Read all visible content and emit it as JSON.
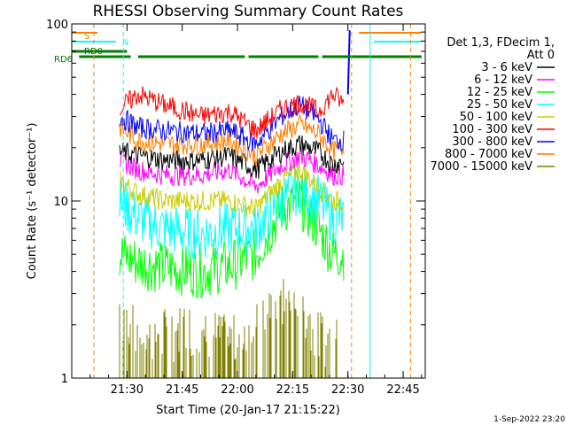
{
  "chart_data": {
    "type": "line",
    "title": "RHESSI Observing Summary Count Rates",
    "xlabel": "Start Time (20-Jan-17 21:15:22)",
    "ylabel": "Count Rate (s⁻¹ detector⁻¹)",
    "yscale": "log",
    "ylim": [
      1,
      100
    ],
    "xlim_minutes": [
      21.25,
      22.85
    ],
    "x_ticks": [
      "21:30",
      "21:45",
      "22:00",
      "22:15",
      "22:30",
      "22:45"
    ],
    "y_ticks": [
      "1",
      "10",
      "100"
    ],
    "grid": false,
    "legend_position": "right",
    "legend_header": [
      "Det 1,3, FDecim 1,",
      "Att 0"
    ],
    "series": [
      {
        "name": "3 - 6 keV",
        "color": "#000000",
        "x": [
          "21:28",
          "21:33",
          "21:40",
          "21:50",
          "21:58",
          "22:05",
          "22:12",
          "22:17",
          "22:22",
          "22:26",
          "22:29"
        ],
        "y": [
          19,
          18,
          17,
          17,
          18,
          15,
          19,
          21,
          19,
          16,
          17
        ]
      },
      {
        "name": "6 - 12 keV",
        "color": "#ff00ff",
        "x": [
          "21:28",
          "21:33",
          "21:40",
          "21:50",
          "21:58",
          "22:05",
          "22:12",
          "22:17",
          "22:22",
          "22:26",
          "22:29"
        ],
        "y": [
          17,
          15,
          14,
          14,
          15,
          12,
          16,
          18,
          16,
          14,
          14
        ]
      },
      {
        "name": "12 - 25 keV",
        "color": "#00ff00",
        "x": [
          "21:28",
          "21:33",
          "21:40",
          "21:50",
          "21:58",
          "22:05",
          "22:12",
          "22:17",
          "22:22",
          "22:26",
          "22:29"
        ],
        "y": [
          5,
          4.5,
          4.2,
          4,
          4.3,
          5,
          9,
          10,
          7,
          5,
          5
        ]
      },
      {
        "name": "25 - 50 keV",
        "color": "#00ffff",
        "x": [
          "21:28",
          "21:33",
          "21:40",
          "21:50",
          "21:58",
          "22:05",
          "22:12",
          "22:17",
          "22:22",
          "22:26",
          "22:29"
        ],
        "y": [
          10,
          8,
          7,
          6.5,
          7,
          7,
          10,
          12,
          10,
          8,
          8
        ]
      },
      {
        "name": "50 - 100 keV",
        "color": "#cccc00",
        "x": [
          "21:28",
          "21:33",
          "21:40",
          "21:50",
          "21:58",
          "22:05",
          "22:12",
          "22:17",
          "22:22",
          "22:26",
          "22:29"
        ],
        "y": [
          13,
          11,
          10,
          10,
          10,
          9,
          13,
          15,
          12,
          10,
          10
        ]
      },
      {
        "name": "100 - 300 keV",
        "color": "#ff0000",
        "x": [
          "21:28",
          "21:33",
          "21:40",
          "21:50",
          "21:58",
          "22:05",
          "22:12",
          "22:17",
          "22:22",
          "22:26",
          "22:29"
        ],
        "y": [
          33,
          40,
          35,
          30,
          32,
          25,
          33,
          36,
          32,
          40,
          35
        ]
      },
      {
        "name": "300 - 800 keV",
        "color": "#0000ff",
        "x": [
          "21:28",
          "21:33",
          "21:40",
          "21:50",
          "21:58",
          "22:05",
          "22:12",
          "22:17",
          "22:22",
          "22:26",
          "22:29"
        ],
        "y": [
          30,
          26,
          25,
          24,
          25,
          21,
          30,
          35,
          29,
          22,
          22
        ]
      },
      {
        "name": "800 - 7000 keV",
        "color": "#ff7f00",
        "x": [
          "21:28",
          "21:33",
          "21:40",
          "21:50",
          "21:58",
          "22:05",
          "22:12",
          "22:17",
          "22:22",
          "22:26",
          "22:29"
        ],
        "y": [
          26,
          22,
          21,
          21,
          22,
          18,
          24,
          27,
          24,
          19,
          20
        ]
      },
      {
        "name": "7000 - 15000 keV",
        "color": "#808000",
        "x": [
          "21:28",
          "21:33",
          "21:40",
          "21:50",
          "21:58",
          "22:05",
          "22:12",
          "22:17",
          "22:22",
          "22:26",
          "22:29"
        ],
        "y": [
          2.0,
          1.4,
          1.5,
          1.6,
          1.3,
          1.6,
          2.2,
          2.0,
          1.4,
          1.3,
          1.3
        ]
      }
    ],
    "flag_labels": {
      "s": "S",
      "n": "N",
      "rd0": "RD0",
      "rdb": "RD6"
    },
    "footer_date": "1-Sep-2022 23:20"
  }
}
